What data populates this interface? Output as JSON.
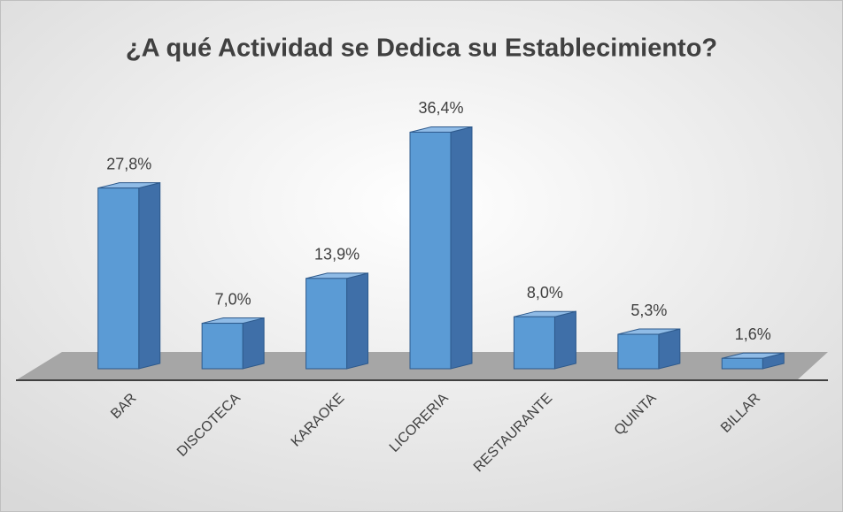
{
  "chart_data": {
    "type": "bar",
    "title": "¿A qué Actividad se Dedica su Establecimiento?",
    "categories": [
      "BAR",
      "DISCOTECA",
      "KARAOKE",
      "LICORERIA",
      "RESTAURANTE",
      "QUINTA",
      "BILLAR"
    ],
    "values": [
      27.8,
      7.0,
      13.9,
      36.4,
      8.0,
      5.3,
      1.6
    ],
    "value_labels": [
      "27,8%",
      "7,0%",
      "13,9%",
      "36,4%",
      "8,0%",
      "5,3%",
      "1,6%"
    ],
    "color": "#5b9bd5",
    "ylim": [
      0,
      40
    ]
  }
}
